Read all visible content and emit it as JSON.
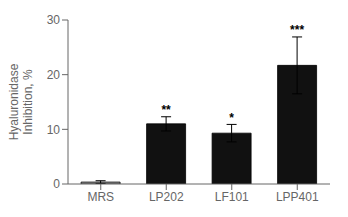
{
  "chart_data": {
    "type": "bar",
    "categories": [
      "MRS",
      "LP202",
      "LF101",
      "LPP401"
    ],
    "values": [
      0.35,
      11.0,
      9.3,
      21.7
    ],
    "errors": [
      0.25,
      1.3,
      1.6,
      5.2
    ],
    "colors": [
      "#aaaaaa",
      "#111111",
      "#111111",
      "#111111"
    ],
    "ylabel": "Hyaluronidase\nInhibition, %",
    "ylim": [
      0,
      30
    ],
    "yticks": [
      0,
      10,
      20,
      30
    ],
    "significance": [
      null,
      "**",
      "*",
      "***"
    ],
    "grid": false
  }
}
